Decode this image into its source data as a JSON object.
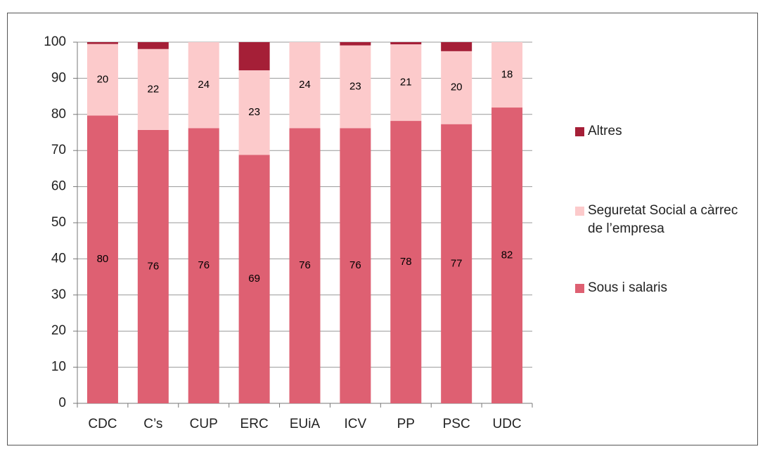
{
  "chart_data": {
    "type": "bar",
    "stacked": true,
    "categories": [
      "CDC",
      "C’s",
      "CUP",
      "ERC",
      "EUiA",
      "ICV",
      "PP",
      "PSC",
      "UDC"
    ],
    "series": [
      {
        "name": "Sous i salaris",
        "color": "#de6072",
        "values": [
          79.7,
          75.7,
          76.2,
          68.8,
          76.2,
          76.2,
          78.2,
          77.3,
          81.9
        ],
        "value_labels": [
          "80",
          "76",
          "76",
          "69",
          "76",
          "76",
          "78",
          "77",
          "82"
        ]
      },
      {
        "name": "Seguretat Social a càrrec de l’empresa",
        "color": "#fccacb",
        "values": [
          19.8,
          22.4,
          23.8,
          23.4,
          23.8,
          22.9,
          21.2,
          20.2,
          18.1
        ],
        "value_labels": [
          "20",
          "22",
          "24",
          "23",
          "24",
          "23",
          "21",
          "20",
          "18"
        ]
      },
      {
        "name": "Altres",
        "color": "#a51f37",
        "values": [
          0.5,
          1.9,
          0,
          7.8,
          0,
          0.9,
          0.6,
          2.5,
          0
        ]
      }
    ],
    "ylim": [
      0,
      100
    ],
    "yticks": [
      0,
      10,
      20,
      30,
      40,
      50,
      60,
      70,
      80,
      90,
      100
    ],
    "grid": true,
    "legend": "right"
  }
}
